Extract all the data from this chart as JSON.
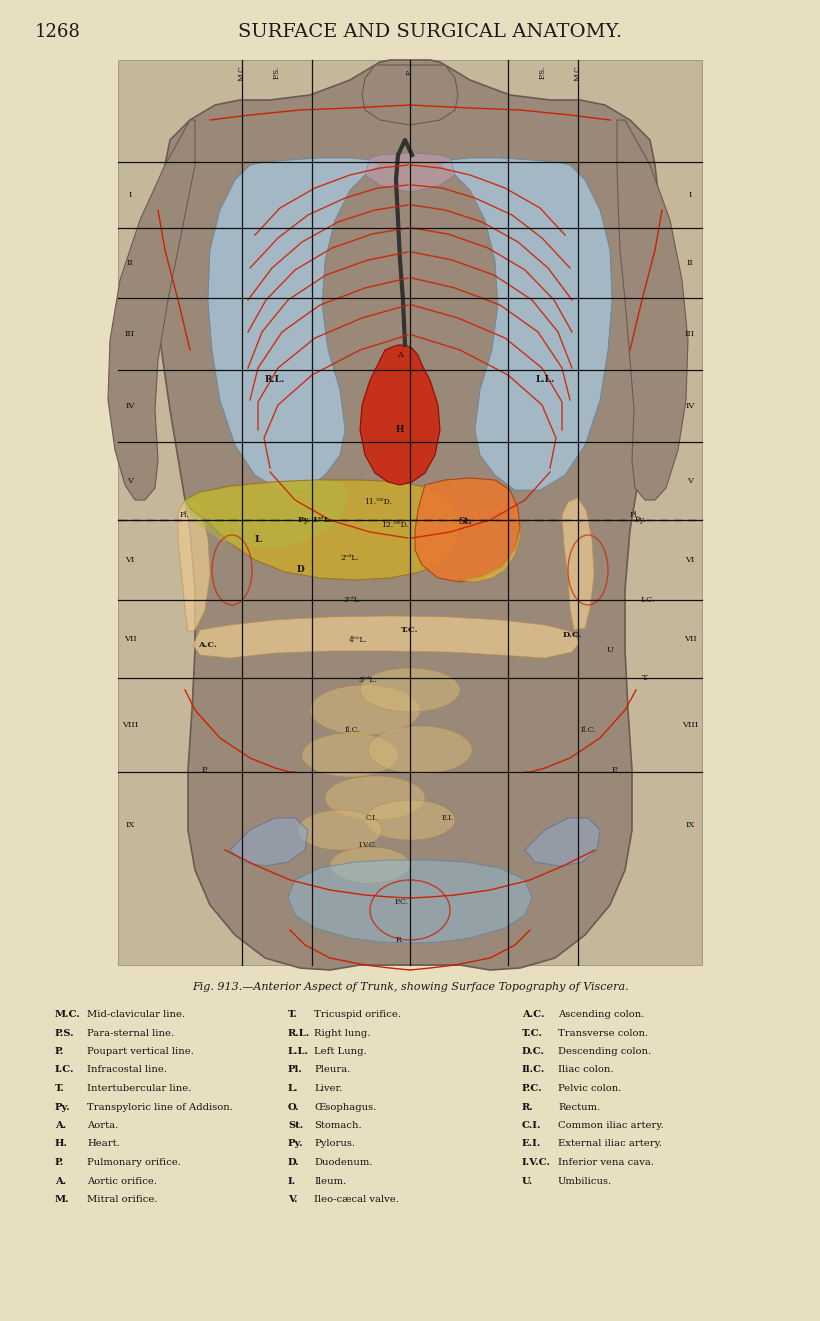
{
  "background_color": "#e8dfc0",
  "header_text": "SURFACE AND SURGICAL ANATOMY.",
  "page_number": "1268",
  "fig_caption": "Fig. 913.—Anterior Aspect of Trunk, showing Surface Topography of Viscera.",
  "legend_col1": [
    [
      "M.C.",
      "Mid-clavicular line."
    ],
    [
      "P.S.",
      "Para-sternal line."
    ],
    [
      "P.",
      "Poupart vertical line."
    ],
    [
      "I.C.",
      "Infracostal line."
    ],
    [
      "T.",
      "Intertubercular line."
    ],
    [
      "Py.",
      "Transpyloric line of Addison."
    ],
    [
      "A.",
      "Aorta."
    ],
    [
      "H.",
      "Heart."
    ],
    [
      "P.",
      "Pulmonary orifice."
    ],
    [
      "A.",
      "Aortic orifice."
    ],
    [
      "M.",
      "Mitral orifice."
    ]
  ],
  "legend_col2": [
    [
      "T.",
      "Tricuspid orifice."
    ],
    [
      "R.L.",
      "Right lung."
    ],
    [
      "L.L.",
      "Left Lung."
    ],
    [
      "Pl.",
      "Pleura."
    ],
    [
      "L.",
      "Liver."
    ],
    [
      "O.",
      "Œsophagus."
    ],
    [
      "St.",
      "Stomach."
    ],
    [
      "Py.",
      "Pylorus."
    ],
    [
      "D.",
      "Duodenum."
    ],
    [
      "I.",
      "Ileum."
    ],
    [
      "V.",
      "Ileo-cæcal valve."
    ]
  ],
  "legend_col3": [
    [
      "A.C.",
      "Ascending colon."
    ],
    [
      "T.C.",
      "Transverse colon."
    ],
    [
      "D.C.",
      "Descending colon."
    ],
    [
      "Il.C.",
      "Iliac colon."
    ],
    [
      "P.C.",
      "Pelvic colon."
    ],
    [
      "R.",
      "Rectum."
    ],
    [
      "C.I.",
      "Common iliac artery."
    ],
    [
      "E.I.",
      "External iliac artery."
    ],
    [
      "I.V.C.",
      "Inferior vena cava."
    ],
    [
      "U.",
      "Umbilicus."
    ]
  ],
  "header_fontsize": 13,
  "caption_fontsize": 8.0,
  "legend_fontsize": 7.2,
  "title_color": "#1a1a1a",
  "lung_blue": "#a8c8e0",
  "liver_yellow": "#c8b840",
  "liver_orange": "#d4904020",
  "stomach_orange": "#e87830",
  "heart_red": "#cc2810",
  "duodenum_color": "#e8c870",
  "colon_color": "#e8c890",
  "pelvis_blue": "#90b8d0",
  "red_line_color": "#cc2200",
  "grid_color": "#111111",
  "body_skin": "#9a8878",
  "body_bg": "#c0b0a0"
}
